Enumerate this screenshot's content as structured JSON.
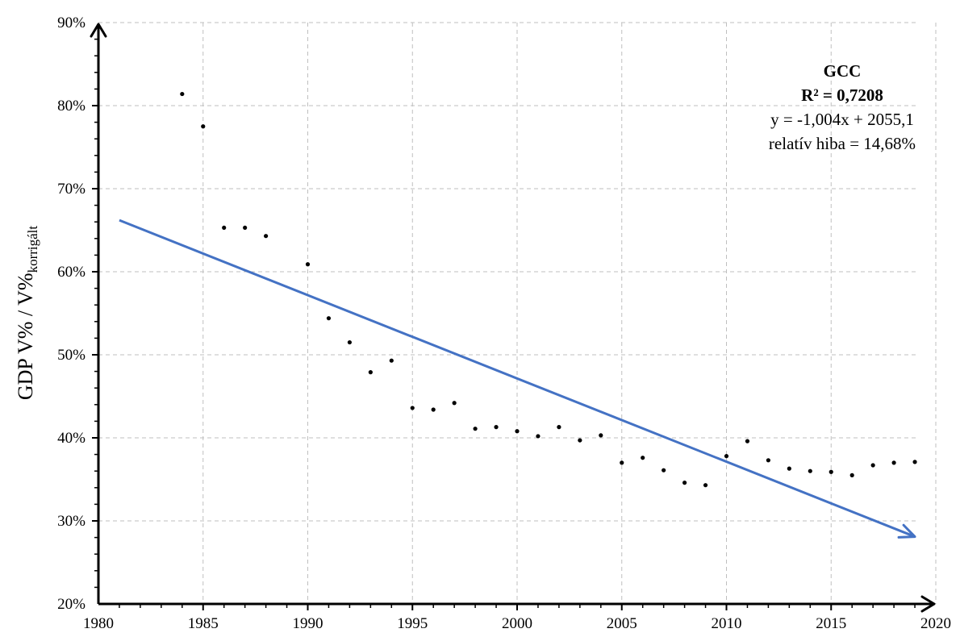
{
  "chart_data": {
    "type": "scatter",
    "title": "",
    "xlabel": "",
    "ylabel": "GDP V% / V%",
    "ylabel_subscript": "korrigált",
    "xlim": [
      1980,
      2020
    ],
    "ylim": [
      20,
      90
    ],
    "x_ticks": [
      1980,
      1985,
      1990,
      1995,
      2000,
      2005,
      2010,
      2015,
      2020
    ],
    "x_tick_labels": [
      "1980",
      "1985",
      "1990",
      "1995",
      "2000",
      "2005",
      "2010",
      "2015",
      "2020"
    ],
    "y_ticks": [
      20,
      30,
      40,
      50,
      60,
      70,
      80,
      90
    ],
    "y_tick_labels": [
      "20%",
      "30%",
      "40%",
      "50%",
      "60%",
      "70%",
      "80%",
      "90%"
    ],
    "grid": true,
    "series": [
      {
        "x": [
          1984,
          1985,
          1986,
          1987,
          1988,
          1990,
          1991,
          1992,
          1993,
          1994,
          1995,
          1996,
          1997,
          1998,
          1999,
          2000,
          2001,
          2002,
          2003,
          2004,
          2005,
          2006,
          2007,
          2008,
          2009,
          2010,
          2011,
          2012,
          2013,
          2014,
          2015,
          2016,
          2017,
          2018,
          2019
        ],
        "y": [
          81.4,
          77.5,
          65.3,
          65.3,
          64.3,
          60.9,
          54.4,
          51.5,
          47.9,
          49.3,
          43.6,
          43.4,
          44.2,
          41.1,
          41.3,
          40.8,
          40.2,
          41.3,
          39.7,
          40.3,
          37.0,
          37.6,
          36.1,
          34.6,
          34.3,
          37.8,
          39.6,
          37.3,
          36.3,
          36.0,
          35.9,
          35.5,
          36.7,
          37.0,
          37.1
        ],
        "color": "#000000"
      }
    ],
    "trendline": {
      "x": [
        1981,
        2019
      ],
      "y": [
        66.2,
        28.1
      ],
      "color": "#4472C4",
      "arrow_end": true
    },
    "annotation": {
      "name": "GCC",
      "r2": "R² = 0,7208",
      "equation": "y = -1,004x + 2055,1",
      "error": "relatív hiba = 14,68%"
    }
  }
}
